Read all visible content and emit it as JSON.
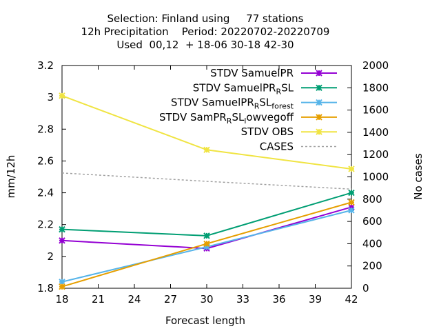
{
  "chart_data": {
    "type": "line",
    "title_lines": [
      "Selection: Finland using     77 stations",
      "12h Precipitation    Period: 20220702-20220709",
      "Used  00,12  + 18-06 30-18 42-30"
    ],
    "xlabel": "Forecast length",
    "ylabel": "mm/12h",
    "y2label": "No cases",
    "xlim": [
      18,
      42
    ],
    "ylim": [
      1.8,
      3.2
    ],
    "y2lim": [
      0,
      2000
    ],
    "xticks": [
      "18",
      "21",
      "24",
      "27",
      "30",
      "33",
      "36",
      "39",
      "42"
    ],
    "yticks": [
      "1.8",
      "2",
      "2.2",
      "2.4",
      "2.6",
      "2.8",
      "3",
      "3.2"
    ],
    "y2ticks": [
      "0",
      "200",
      "400",
      "600",
      "800",
      "1000",
      "1200",
      "1400",
      "1600",
      "1800",
      "2000"
    ],
    "grid": false,
    "legend_position": "top-right",
    "series": [
      {
        "name": "STDV SamuelPR",
        "color": "#9400d3",
        "marker": "x-cross",
        "x": [
          18,
          30,
          42
        ],
        "values": [
          2.1,
          2.05,
          2.31
        ]
      },
      {
        "name": "STDV SamuelPR_RSL",
        "color": "#009e73",
        "marker": "x-cross",
        "x": [
          18,
          30,
          42
        ],
        "values": [
          2.17,
          2.13,
          2.4
        ]
      },
      {
        "name": "STDV SamuelPR_RSL_forest",
        "color": "#56b4e9",
        "marker": "x-cross",
        "x": [
          18,
          30,
          42
        ],
        "values": [
          1.84,
          2.06,
          2.29
        ]
      },
      {
        "name": "STDV SamPR_RSL_lowvegoff",
        "color": "#e69f00",
        "marker": "x-cross",
        "x": [
          18,
          30,
          42
        ],
        "values": [
          1.81,
          2.08,
          2.34
        ]
      },
      {
        "name": "STDV OBS",
        "color": "#f0e442",
        "marker": "x-cross",
        "x": [
          18,
          30,
          42
        ],
        "values": [
          3.01,
          2.67,
          2.55
        ]
      },
      {
        "name": "CASES",
        "color": "#a0a0a0",
        "axis": "y2",
        "dashed": true,
        "x": [
          18,
          30,
          42
        ],
        "values": [
          1035,
          960,
          890
        ]
      }
    ]
  }
}
